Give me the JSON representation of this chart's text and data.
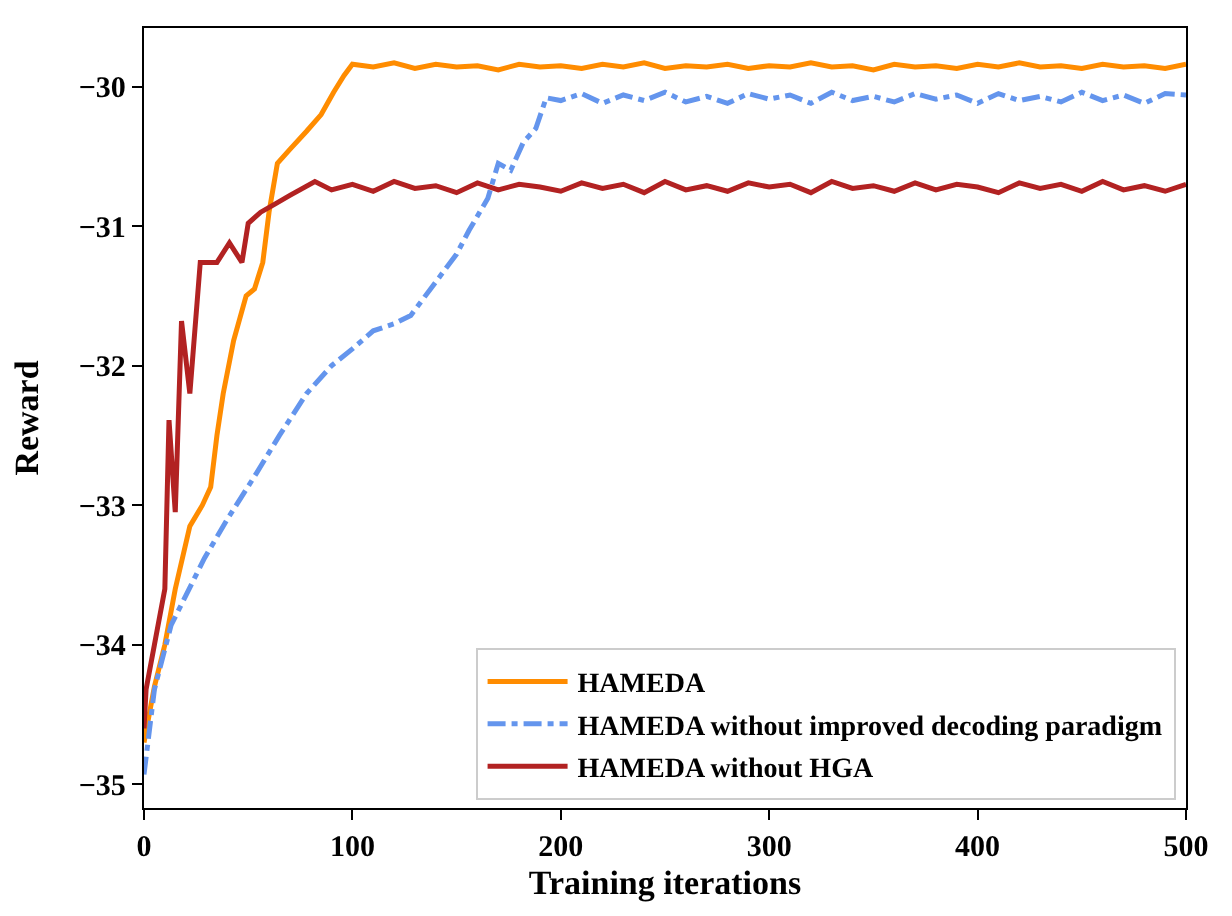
{
  "chart_data": {
    "type": "line",
    "xlabel": "Training iterations",
    "ylabel": "Reward",
    "xlim": [
      0,
      500
    ],
    "ylim": [
      -35.17,
      -29.58
    ],
    "xticks": [
      0,
      100,
      200,
      300,
      400,
      500
    ],
    "yticks": [
      {
        "value": -35,
        "label": "−35"
      },
      {
        "value": -34,
        "label": "−34"
      },
      {
        "value": -33,
        "label": "−33"
      },
      {
        "value": -32,
        "label": "−32"
      },
      {
        "value": -31,
        "label": "−31"
      },
      {
        "value": -30,
        "label": "−30"
      }
    ],
    "legend": "bottom right",
    "marker": "none",
    "series": [
      {
        "name": "HAMEDA",
        "color": "#ff8c00",
        "line_style": "solid",
        "x": [
          0,
          5,
          10,
          15,
          22,
          28,
          32,
          35,
          38,
          43,
          49,
          53,
          57,
          60,
          64,
          70,
          78,
          85,
          91,
          96,
          100,
          110,
          120,
          130,
          140,
          150,
          160,
          170,
          180,
          190,
          200,
          210,
          220,
          230,
          240,
          250,
          260,
          270,
          280,
          290,
          300,
          310,
          320,
          330,
          340,
          350,
          360,
          370,
          380,
          390,
          400,
          410,
          420,
          430,
          440,
          450,
          460,
          470,
          480,
          490,
          500
        ],
        "values": [
          -34.7,
          -34.3,
          -34.0,
          -33.6,
          -33.15,
          -33.0,
          -32.87,
          -32.5,
          -32.2,
          -31.82,
          -31.5,
          -31.45,
          -31.26,
          -30.9,
          -30.55,
          -30.45,
          -30.32,
          -30.2,
          -30.04,
          -29.92,
          -29.84,
          -29.86,
          -29.83,
          -29.87,
          -29.84,
          -29.86,
          -29.85,
          -29.88,
          -29.84,
          -29.86,
          -29.85,
          -29.87,
          -29.84,
          -29.86,
          -29.83,
          -29.87,
          -29.85,
          -29.86,
          -29.84,
          -29.87,
          -29.85,
          -29.86,
          -29.83,
          -29.86,
          -29.85,
          -29.88,
          -29.84,
          -29.86,
          -29.85,
          -29.87,
          -29.84,
          -29.86,
          -29.83,
          -29.86,
          -29.85,
          -29.87,
          -29.84,
          -29.86,
          -29.85,
          -29.87,
          -29.84
        ]
      },
      {
        "name": "HAMEDA without improved decoding paradigm",
        "color": "#6495ed",
        "line_style": "dashdot",
        "x": [
          0,
          5,
          13,
          20,
          29,
          40,
          54,
          65,
          78,
          90,
          100,
          110,
          120,
          128,
          140,
          150,
          156,
          165,
          170,
          176,
          182,
          188,
          193,
          200,
          210,
          220,
          230,
          240,
          250,
          260,
          270,
          280,
          290,
          300,
          310,
          320,
          330,
          340,
          350,
          360,
          370,
          380,
          390,
          400,
          410,
          420,
          430,
          440,
          450,
          460,
          470,
          480,
          490,
          500
        ],
        "values": [
          -34.93,
          -34.32,
          -33.86,
          -33.65,
          -33.38,
          -33.1,
          -32.77,
          -32.5,
          -32.2,
          -32.0,
          -31.88,
          -31.75,
          -31.7,
          -31.64,
          -31.4,
          -31.2,
          -31.03,
          -30.8,
          -30.55,
          -30.6,
          -30.4,
          -30.3,
          -30.08,
          -30.1,
          -30.05,
          -30.12,
          -30.06,
          -30.1,
          -30.04,
          -30.11,
          -30.07,
          -30.12,
          -30.05,
          -30.09,
          -30.06,
          -30.12,
          -30.04,
          -30.1,
          -30.07,
          -30.11,
          -30.05,
          -30.09,
          -30.06,
          -30.12,
          -30.05,
          -30.1,
          -30.07,
          -30.11,
          -30.04,
          -30.1,
          -30.06,
          -30.12,
          -30.05,
          -30.06
        ]
      },
      {
        "name": "HAMEDA without HGA",
        "color": "#b22222",
        "line_style": "solid",
        "x": [
          0,
          1,
          5,
          10,
          12,
          15,
          18,
          22,
          27,
          35,
          41,
          47,
          50,
          56,
          63,
          70,
          82,
          90,
          100,
          110,
          120,
          130,
          140,
          150,
          160,
          170,
          180,
          190,
          200,
          210,
          220,
          230,
          240,
          250,
          260,
          270,
          280,
          290,
          300,
          310,
          320,
          330,
          340,
          350,
          360,
          370,
          380,
          390,
          400,
          410,
          420,
          430,
          440,
          450,
          460,
          470,
          480,
          490,
          500
        ],
        "values": [
          -34.6,
          -34.32,
          -34.0,
          -33.6,
          -32.39,
          -33.05,
          -31.68,
          -32.2,
          -31.26,
          -31.26,
          -31.12,
          -31.26,
          -30.98,
          -30.9,
          -30.84,
          -30.78,
          -30.68,
          -30.74,
          -30.7,
          -30.75,
          -30.68,
          -30.73,
          -30.71,
          -30.76,
          -30.69,
          -30.74,
          -30.7,
          -30.72,
          -30.75,
          -30.69,
          -30.73,
          -30.7,
          -30.76,
          -30.68,
          -30.74,
          -30.71,
          -30.75,
          -30.69,
          -30.72,
          -30.7,
          -30.76,
          -30.68,
          -30.73,
          -30.71,
          -30.75,
          -30.69,
          -30.74,
          -30.7,
          -30.72,
          -30.76,
          -30.69,
          -30.73,
          -30.7,
          -30.75,
          -30.68,
          -30.74,
          -30.71,
          -30.75,
          -30.7
        ]
      }
    ]
  }
}
